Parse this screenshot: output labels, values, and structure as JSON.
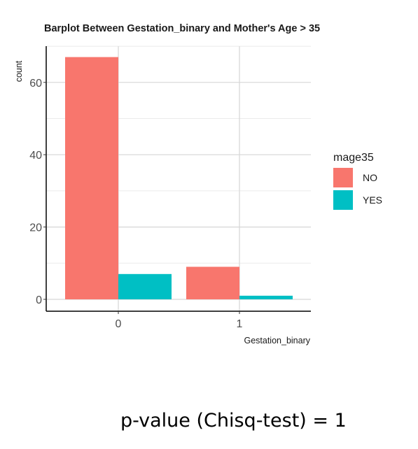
{
  "chart_data": {
    "type": "bar",
    "title": "Barplot Between Gestation_binary and Mother's Age > 35",
    "xlabel": "Gestation_binary",
    "ylabel": "count",
    "categories": [
      "0",
      "1"
    ],
    "series": [
      {
        "name": "NO",
        "color": "#F8766D",
        "values": [
          67,
          9
        ]
      },
      {
        "name": "YES",
        "color": "#00BFC4",
        "values": [
          7,
          1
        ]
      }
    ],
    "ylim": [
      0,
      70
    ],
    "yticks": [
      0,
      20,
      40,
      60
    ],
    "legend": {
      "title": "mage35",
      "position": "right"
    },
    "grid": true
  },
  "annotation": {
    "pvalue_text": "p-value (Chisq-test) = 1"
  }
}
